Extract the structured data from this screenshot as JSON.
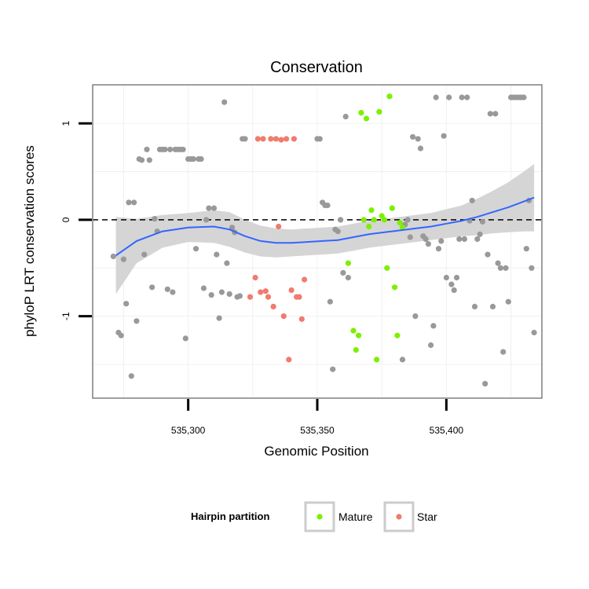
{
  "chart_data": {
    "type": "scatter",
    "title": "Conservation",
    "xlabel": "Genomic Position",
    "ylabel": "phyloP LRT conservation scores",
    "xlim": [
      535263,
      535437
    ],
    "ylim": [
      -1.85,
      1.4
    ],
    "x_ticks": [
      535300,
      535350,
      535400
    ],
    "x_tick_labels": [
      "535,300",
      "535,350",
      "535,400"
    ],
    "y_ticks": [
      -1,
      0,
      1
    ],
    "y_tick_labels": [
      "-1",
      "0",
      "1"
    ],
    "grid": true,
    "reference_line": {
      "y": 0,
      "style": "dashed"
    },
    "legend": {
      "title": "Hairpin partition",
      "position": "bottom",
      "entries": [
        {
          "label": "Mature",
          "color": "#7cf000"
        },
        {
          "label": "Star",
          "color": "#f07b6e"
        }
      ]
    },
    "colors": {
      "Other": "#999999",
      "Mature": "#7cf000",
      "Star": "#f07b6e",
      "smooth": "#3366ff",
      "ribbon": "#d3d3d3"
    },
    "smooth": {
      "x": [
        535272,
        535280,
        535290,
        535300,
        535310,
        535316,
        535322,
        535328,
        535334,
        535340,
        535346,
        535352,
        535358,
        535364,
        535370,
        535376,
        535382,
        535388,
        535394,
        535400,
        535406,
        535412,
        535418,
        535424,
        535430,
        535434
      ],
      "y": [
        -0.37,
        -0.22,
        -0.12,
        -0.08,
        -0.07,
        -0.1,
        -0.17,
        -0.22,
        -0.24,
        -0.24,
        -0.23,
        -0.22,
        -0.21,
        -0.18,
        -0.15,
        -0.13,
        -0.11,
        -0.09,
        -0.07,
        -0.04,
        -0.01,
        0.03,
        0.08,
        0.13,
        0.19,
        0.23
      ],
      "lower": [
        -0.77,
        -0.45,
        -0.29,
        -0.23,
        -0.24,
        -0.28,
        -0.34,
        -0.38,
        -0.39,
        -0.38,
        -0.37,
        -0.36,
        -0.35,
        -0.32,
        -0.29,
        -0.27,
        -0.25,
        -0.23,
        -0.21,
        -0.19,
        -0.17,
        -0.16,
        -0.14,
        -0.13,
        -0.12,
        -0.12
      ],
      "upper": [
        0.03,
        0.01,
        0.05,
        0.07,
        0.1,
        0.08,
        0.0,
        -0.06,
        -0.09,
        -0.1,
        -0.09,
        -0.08,
        -0.07,
        -0.04,
        -0.01,
        0.01,
        0.03,
        0.05,
        0.07,
        0.11,
        0.15,
        0.22,
        0.3,
        0.39,
        0.5,
        0.58
      ]
    },
    "series": [
      {
        "name": "Other",
        "x": [
          535271,
          535273,
          535274,
          535275,
          535276,
          535277,
          535278,
          535279,
          535280,
          535281,
          535282,
          535283,
          535284,
          535285,
          535286,
          535287,
          535288,
          535289,
          535290,
          535291,
          535292,
          535293,
          535294,
          535295,
          535296,
          535297,
          535298,
          535299,
          535300,
          535301,
          535302,
          535303,
          535304,
          535305,
          535306,
          535307,
          535308,
          535309,
          535310,
          535311,
          535312,
          535313,
          535314,
          535315,
          535316,
          535317,
          535318,
          535319,
          535320,
          535321,
          535322,
          535350,
          535351,
          535352,
          535353,
          535354,
          535355,
          535356,
          535357,
          535358,
          535359,
          535360,
          535361,
          535362,
          535383,
          535384,
          535385,
          535386,
          535387,
          535388,
          535389,
          535390,
          535391,
          535392,
          535393,
          535394,
          535395,
          535396,
          535397,
          535398,
          535399,
          535400,
          535401,
          535402,
          535403,
          535404,
          535405,
          535406,
          535407,
          535408,
          535409,
          535410,
          535411,
          535412,
          535413,
          535414,
          535415,
          535416,
          535417,
          535418,
          535419,
          535420,
          535421,
          535422,
          535423,
          535424,
          535425,
          535426,
          535427,
          535428,
          535429,
          535430,
          535431,
          535432,
          535433,
          535434
        ],
        "y": [
          -0.38,
          -1.17,
          -1.2,
          -0.41,
          -0.87,
          0.18,
          -1.62,
          0.18,
          -1.05,
          0.63,
          0.62,
          -0.36,
          0.73,
          0.62,
          -0.7,
          0.01,
          -0.12,
          0.73,
          0.73,
          0.73,
          -0.72,
          0.73,
          -0.75,
          0.73,
          0.73,
          0.73,
          0.73,
          -1.23,
          0.63,
          0.63,
          0.63,
          -0.3,
          0.63,
          0.63,
          -0.71,
          0.0,
          0.12,
          -0.78,
          0.12,
          -0.36,
          -1.02,
          -0.75,
          1.22,
          -0.45,
          -0.77,
          -0.08,
          -0.13,
          -0.8,
          -0.79,
          0.84,
          0.84,
          0.84,
          0.84,
          0.18,
          0.15,
          0.15,
          -0.85,
          -1.55,
          -0.1,
          -0.12,
          0.0,
          -0.55,
          1.07,
          -0.6,
          -1.45,
          -0.05,
          0.0,
          -0.18,
          0.86,
          -1.0,
          0.84,
          0.74,
          -0.17,
          -0.2,
          -0.25,
          -1.3,
          -1.1,
          1.27,
          -0.3,
          -0.22,
          0.87,
          -0.6,
          1.27,
          -0.67,
          -0.73,
          -0.6,
          -0.2,
          1.27,
          -0.2,
          1.27,
          -0.01,
          0.2,
          -0.9,
          -0.2,
          -0.15,
          -0.02,
          -1.7,
          -0.36,
          1.1,
          -0.9,
          1.1,
          -0.45,
          -0.5,
          -1.37,
          -0.5,
          -0.85,
          1.27,
          1.27,
          1.27,
          1.27,
          1.27,
          1.27,
          -0.3,
          0.2,
          -0.5,
          -1.17
        ],
        "color": "#999999"
      },
      {
        "name": "Mature",
        "x": [
          535362,
          535364,
          535365,
          535366,
          535367,
          535368,
          535369,
          535370,
          535371,
          535372,
          535373,
          535374,
          535375,
          535376,
          535377,
          535378,
          535379,
          535380,
          535381,
          535382,
          535383
        ],
        "y": [
          -0.45,
          -1.15,
          -1.35,
          -1.2,
          1.11,
          0.0,
          1.05,
          -0.07,
          0.1,
          0.0,
          -1.45,
          1.12,
          0.04,
          0.0,
          -0.5,
          1.28,
          0.12,
          -0.7,
          -1.2,
          -0.03,
          -0.08
        ],
        "color": "#7cf000"
      },
      {
        "name": "Star",
        "x": [
          535324,
          535326,
          535327,
          535328,
          535329,
          535330,
          535331,
          535332,
          535333,
          535334,
          535335,
          535336,
          535337,
          535338,
          535339,
          535340,
          535341,
          535342,
          535343,
          535344,
          535345
        ],
        "y": [
          -0.8,
          -0.6,
          0.84,
          -0.75,
          0.84,
          -0.74,
          -0.8,
          0.84,
          -0.9,
          0.84,
          -0.07,
          0.83,
          -1.0,
          0.84,
          -1.45,
          -0.73,
          0.84,
          -0.8,
          -0.8,
          -1.03,
          -0.62
        ],
        "color": "#f07b6e"
      }
    ]
  }
}
